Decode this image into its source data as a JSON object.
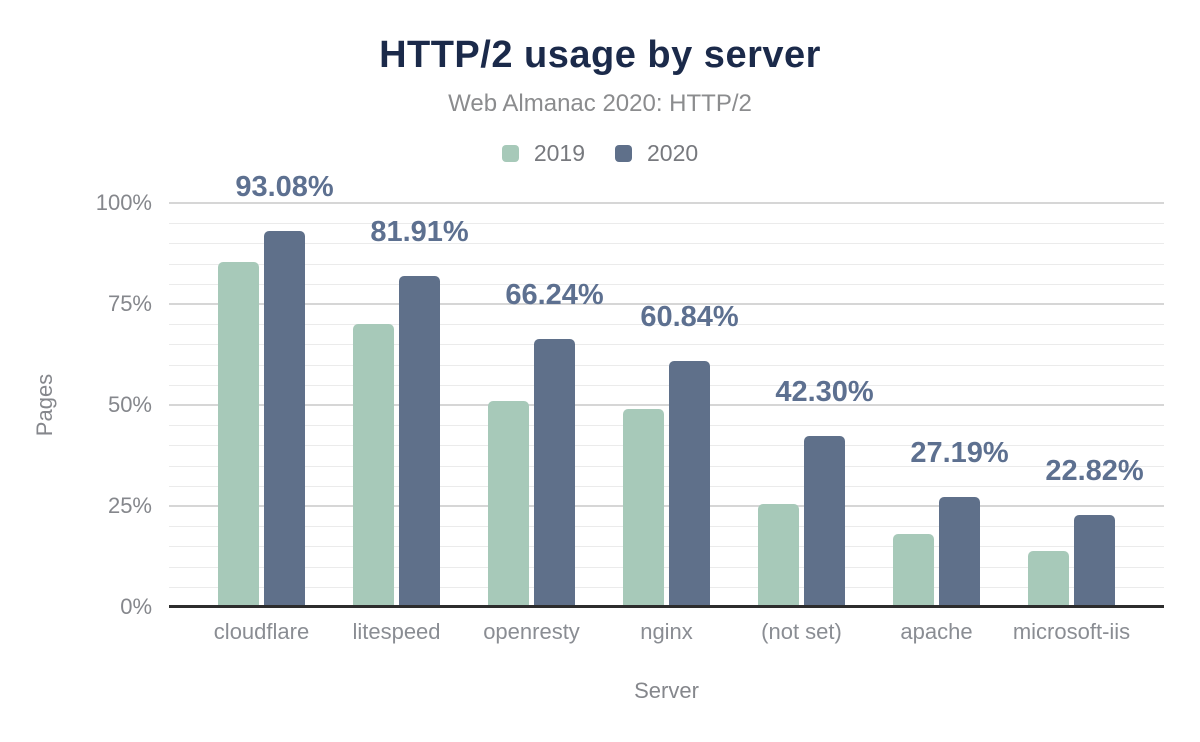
{
  "title": "HTTP/2 usage by server",
  "subtitle": "Web Almanac 2020: HTTP/2",
  "legend": [
    {
      "label": "2019",
      "color": "#a7c9b9"
    },
    {
      "label": "2020",
      "color": "#5f708a"
    }
  ],
  "y_axis": {
    "title": "Pages",
    "ticks": [
      {
        "value": 0,
        "label": "0%"
      },
      {
        "value": 25,
        "label": "25%"
      },
      {
        "value": 50,
        "label": "50%"
      },
      {
        "value": 75,
        "label": "75%"
      },
      {
        "value": 100,
        "label": "100%"
      }
    ],
    "minor_step": 5,
    "major_step": 25,
    "max": 100
  },
  "x_axis": {
    "title": "Server"
  },
  "chart_data": {
    "type": "bar",
    "title": "HTTP/2 usage by server",
    "subtitle": "Web Almanac 2020: HTTP/2",
    "xlabel": "Server",
    "ylabel": "Pages",
    "ylim": [
      0,
      100
    ],
    "grid": true,
    "legend_position": "top",
    "categories": [
      "cloudflare",
      "litespeed",
      "openresty",
      "nginx",
      "(not set)",
      "apache",
      "microsoft-iis"
    ],
    "series": [
      {
        "name": "2019",
        "color": "#a7c9b9",
        "values": [
          85.3,
          70.1,
          51.0,
          49.0,
          25.4,
          18.0,
          13.9
        ],
        "labels": [
          "",
          "",
          "",
          "",
          "",
          "",
          ""
        ]
      },
      {
        "name": "2020",
        "color": "#5f708a",
        "values": [
          93.08,
          81.91,
          66.24,
          60.84,
          42.3,
          27.19,
          22.82
        ],
        "labels": [
          "93.08%",
          "81.91%",
          "66.24%",
          "60.84%",
          "42.30%",
          "27.19%",
          "22.82%"
        ]
      }
    ],
    "value_label_color": "#5d7090"
  },
  "colors": {
    "title": "#1b2a4a",
    "subtitle": "#8b8c8e",
    "axis_text": "#85878c",
    "category_text": "#8a8d93",
    "gridline_minor": "#ebebeb",
    "gridline_major": "#d6d6d6",
    "baseline": "#2d2d2d",
    "background": "#ffffff"
  }
}
